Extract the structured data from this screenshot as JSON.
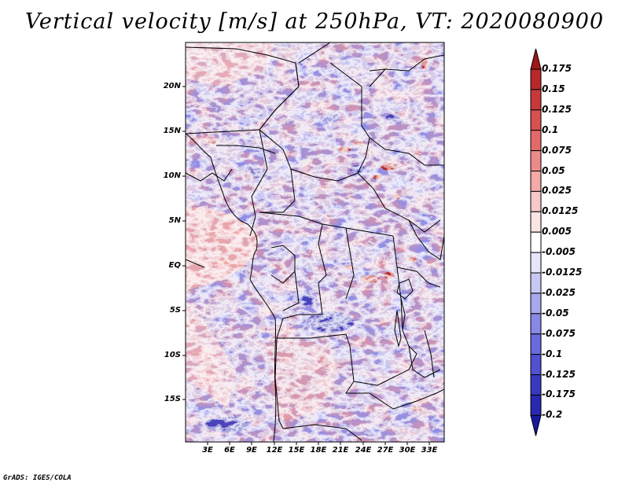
{
  "title": "Vertical velocity [m/s] at 250hPa, VT: 2020080900",
  "footer": "GrADS: IGES/COLA",
  "map": {
    "variable": "Vertical velocity",
    "units": "m/s",
    "level": "250hPa",
    "valid_time": "2020080900",
    "lat_labels": [
      "20N",
      "15N",
      "10N",
      "5N",
      "EQ",
      "5S",
      "10S",
      "15S"
    ],
    "lon_labels": [
      "3E",
      "6E",
      "9E",
      "12E",
      "15E",
      "18E",
      "21E",
      "24E",
      "27E",
      "30E",
      "33E"
    ]
  },
  "colorbar": {
    "labels": [
      "0.175",
      "0.15",
      "0.125",
      "0.1",
      "0.075",
      "0.05",
      "0.025",
      "0.0125",
      "0.005",
      "-0.005",
      "-0.0125",
      "-0.025",
      "-0.05",
      "-0.075",
      "-0.1",
      "-0.125",
      "-0.175",
      "-0.2"
    ],
    "colors": [
      "#a01818",
      "#b82828",
      "#c83838",
      "#d85050",
      "#e26a6a",
      "#ec8a8a",
      "#f4a8a8",
      "#f8c8c8",
      "#fbe4e4",
      "#ffffff",
      "#e6e6fb",
      "#c8c8f4",
      "#a8a8ee",
      "#8888e6",
      "#6a6ade",
      "#5050d0",
      "#3838c0",
      "#2828b0",
      "#1818a0"
    ]
  },
  "colors": {
    "positive": "#e05050",
    "negative": "#5050d8",
    "border": "#000000"
  }
}
